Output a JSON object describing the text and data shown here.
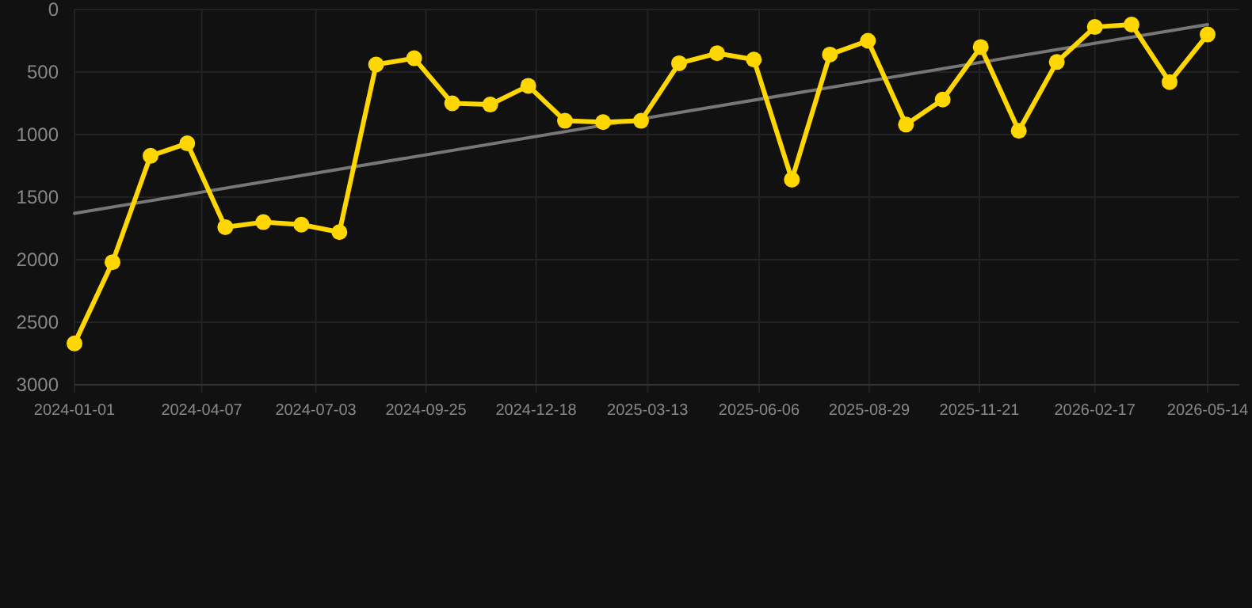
{
  "chart_data": {
    "type": "line",
    "x": [
      "2024-01-01",
      "2024-01-30",
      "2024-02-28",
      "2024-03-27",
      "2024-04-25",
      "2024-05-24",
      "2024-06-22",
      "2024-07-21",
      "2024-08-18",
      "2024-09-16",
      "2024-10-15",
      "2024-11-13",
      "2024-12-12",
      "2025-01-09",
      "2025-02-07",
      "2025-03-08",
      "2025-04-06",
      "2025-05-05",
      "2025-06-02",
      "2025-07-01",
      "2025-07-30",
      "2025-08-28",
      "2025-09-26",
      "2025-10-24",
      "2025-11-22",
      "2025-12-21",
      "2026-01-19",
      "2026-02-17",
      "2026-03-17",
      "2026-04-15",
      "2026-05-14"
    ],
    "series": [
      {
        "color": "#ffd700",
        "marker": "circle",
        "values": [
          2670,
          2020,
          1170,
          1070,
          1740,
          1700,
          1720,
          1780,
          440,
          390,
          750,
          760,
          610,
          890,
          900,
          890,
          430,
          350,
          400,
          1360,
          360,
          250,
          920,
          720,
          300,
          970,
          420,
          140,
          120,
          580,
          200
        ]
      },
      {
        "type": "line",
        "color": "#777777",
        "marker": "none",
        "x": [
          "2024-01-01",
          "2026-05-14"
        ],
        "values": [
          1630,
          120
        ]
      }
    ],
    "ylim": [
      3000,
      0
    ],
    "yticks": [
      0,
      500,
      1000,
      1500,
      2000,
      2500,
      3000
    ],
    "xlim": [
      "2024-01-01",
      "2026-05-14"
    ],
    "xticks": [
      {
        "value": "2024-01-01",
        "label": "2024-01-01"
      },
      {
        "value": "2024-04-07",
        "label": "2024-04-07"
      },
      {
        "value": "2024-07-03",
        "label": "2024-07-03"
      },
      {
        "value": "2024-09-25",
        "label": "2024-09-25"
      },
      {
        "value": "2024-12-18",
        "label": "2024-12-18"
      },
      {
        "value": "2025-03-13",
        "label": "2025-03-13"
      },
      {
        "value": "2025-06-06",
        "label": "2025-06-06"
      },
      {
        "value": "2025-08-29",
        "label": "2025-08-29"
      },
      {
        "value": "2025-11-21",
        "label": "2025-11-21"
      },
      {
        "value": "2026-02-17",
        "label": "2026-02-17"
      },
      {
        "value": "2026-05-14",
        "label": "2026-05-14"
      }
    ],
    "grid": true
  }
}
